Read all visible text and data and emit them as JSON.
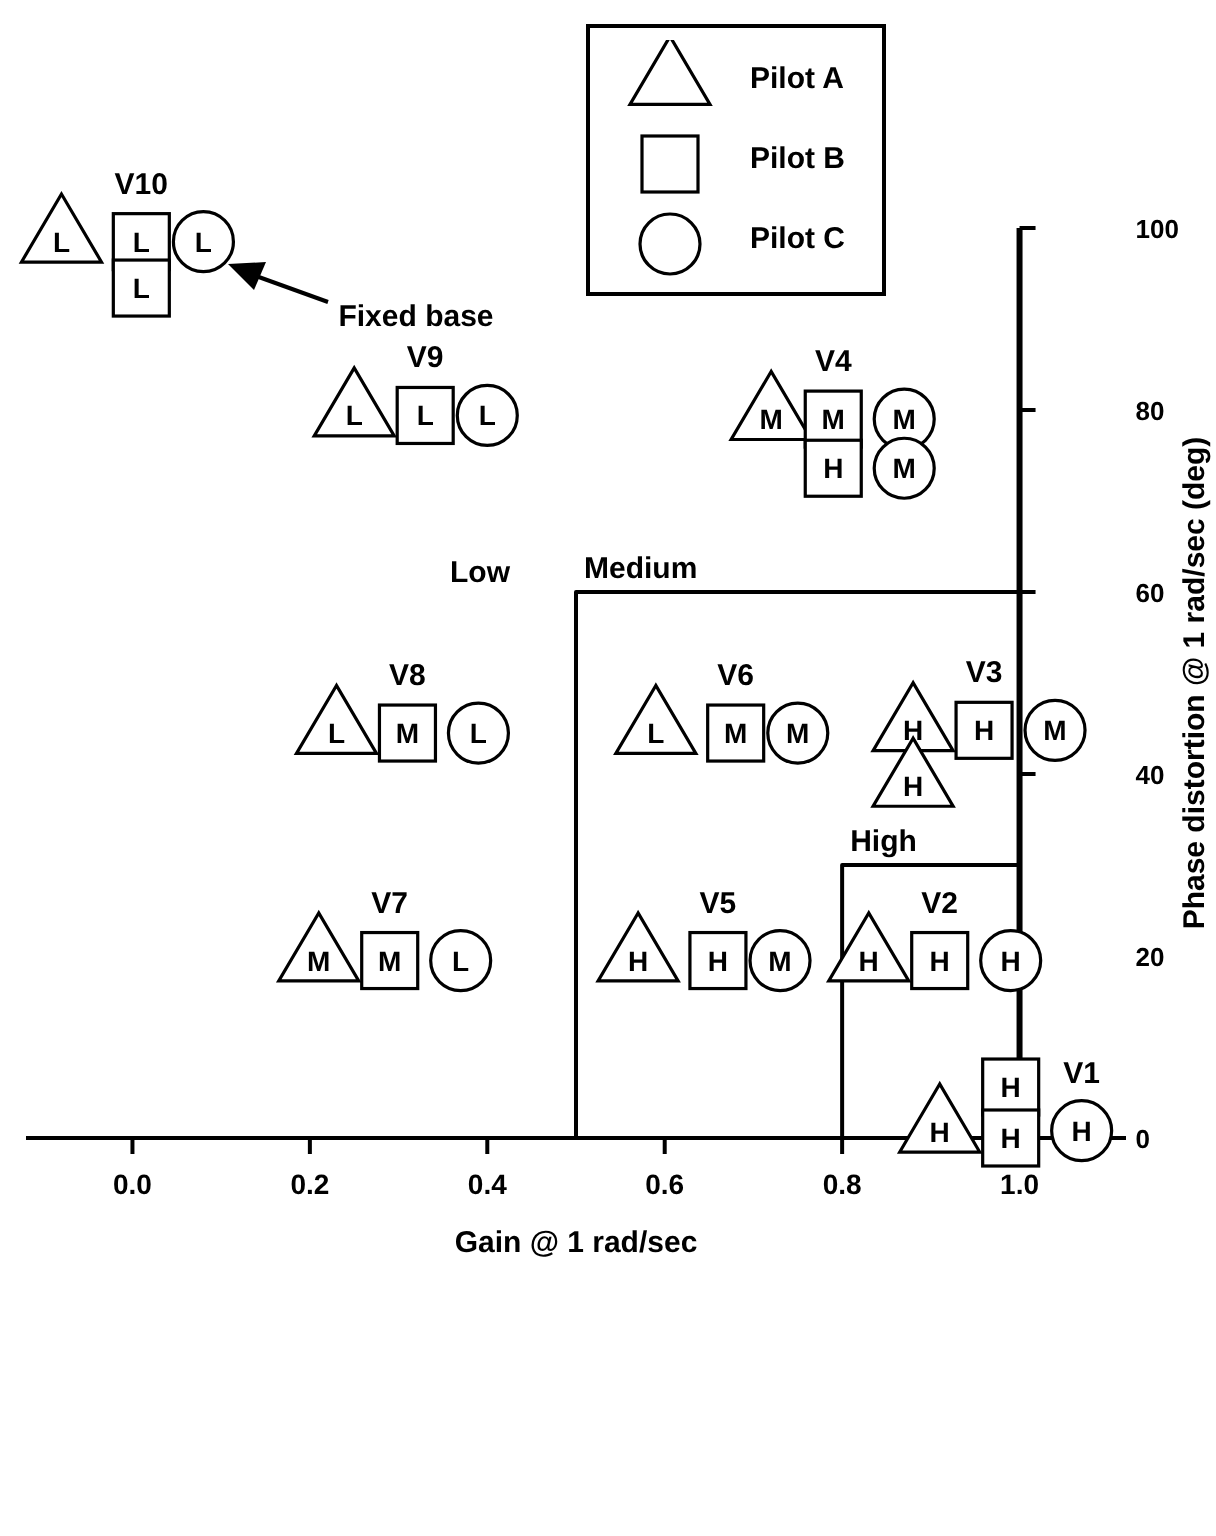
{
  "chart_data": {
    "type": "scatter",
    "xlabel": "Gain @ 1 rad/sec",
    "ylabel": "Phase distortion @ 1 rad/sec (deg)",
    "xlim": [
      -0.12,
      1.12
    ],
    "xticks": [
      {
        "value": 0,
        "label": "0.0"
      },
      0.2,
      0.4,
      0.6,
      0.8,
      {
        "value": 1,
        "label": "1.0"
      }
    ],
    "ylim": [
      0,
      100
    ],
    "yticks": [
      0,
      20,
      40,
      60,
      80,
      100
    ],
    "legend": "top",
    "series": [
      {
        "type": "line",
        "name": "Medium",
        "color": "#000000",
        "x": [
          0.5,
          0.5,
          1.0
        ],
        "values": [
          0,
          60,
          60
        ]
      },
      {
        "type": "line",
        "name": "High",
        "color": "#000000",
        "x": [
          0.8,
          0.8,
          1.0
        ],
        "values": [
          0,
          30,
          30
        ]
      },
      {
        "name": "Pilot A",
        "marker": "triangle",
        "color": "#000000",
        "x": [
          -0.08,
          0.25,
          0.72,
          0.23,
          0.59,
          0.88,
          0.88,
          0.21,
          0.57,
          0.83,
          0.91
        ],
        "values": [
          98.5,
          79.4,
          79,
          44.5,
          44.5,
          44.8,
          38.7,
          19.5,
          19.5,
          19.5,
          0.7
        ],
        "value_labels": [
          "L",
          "L",
          "M",
          "L",
          "L",
          "H",
          "H",
          "M",
          "H",
          "H",
          "H"
        ]
      },
      {
        "name": "Pilot B",
        "marker": "square",
        "color": "#000000",
        "x": [
          0.01,
          0.01,
          0.33,
          0.79,
          0.79,
          0.31,
          0.68,
          0.96,
          0.29,
          0.66,
          0.91,
          0.99,
          0.99
        ],
        "values": [
          98.5,
          93.4,
          79.4,
          79,
          73.6,
          44.5,
          44.5,
          44.8,
          19.5,
          19.5,
          19.5,
          5.6,
          0
        ],
        "value_labels": [
          "L",
          "L",
          "L",
          "M",
          "H",
          "M",
          "M",
          "H",
          "M",
          "H",
          "H",
          "H",
          "H"
        ]
      },
      {
        "name": "Pilot C",
        "marker": "circle",
        "color": "#000000",
        "x": [
          0.08,
          0.4,
          0.87,
          0.87,
          0.39,
          0.75,
          1.04,
          0.37,
          0.73,
          0.99,
          1.07
        ],
        "values": [
          98.5,
          79.4,
          79,
          73.6,
          44.5,
          44.5,
          44.8,
          19.5,
          19.5,
          19.5,
          0.8
        ],
        "value_labels": [
          "L",
          "L",
          "M",
          "M",
          "L",
          "M",
          "M",
          "L",
          "M",
          "H",
          "H"
        ]
      }
    ],
    "annotations": [
      {
        "text": "V10",
        "x": 0.01,
        "y": 98.5
      },
      {
        "text": "V9",
        "x": 0.33,
        "y": 79.4
      },
      {
        "text": "V4",
        "x": 0.79,
        "y": 79
      },
      {
        "text": "V8",
        "x": 0.31,
        "y": 44.5
      },
      {
        "text": "V6",
        "x": 0.68,
        "y": 44.5
      },
      {
        "text": "V3",
        "x": 0.96,
        "y": 44.8
      },
      {
        "text": "V7",
        "x": 0.29,
        "y": 19.5
      },
      {
        "text": "V5",
        "x": 0.66,
        "y": 19.5
      },
      {
        "text": "V2",
        "x": 0.91,
        "y": 19.5
      },
      {
        "text": "V1",
        "x": 1.07,
        "y": 0.8
      },
      "Low",
      "Fixed base"
    ]
  }
}
